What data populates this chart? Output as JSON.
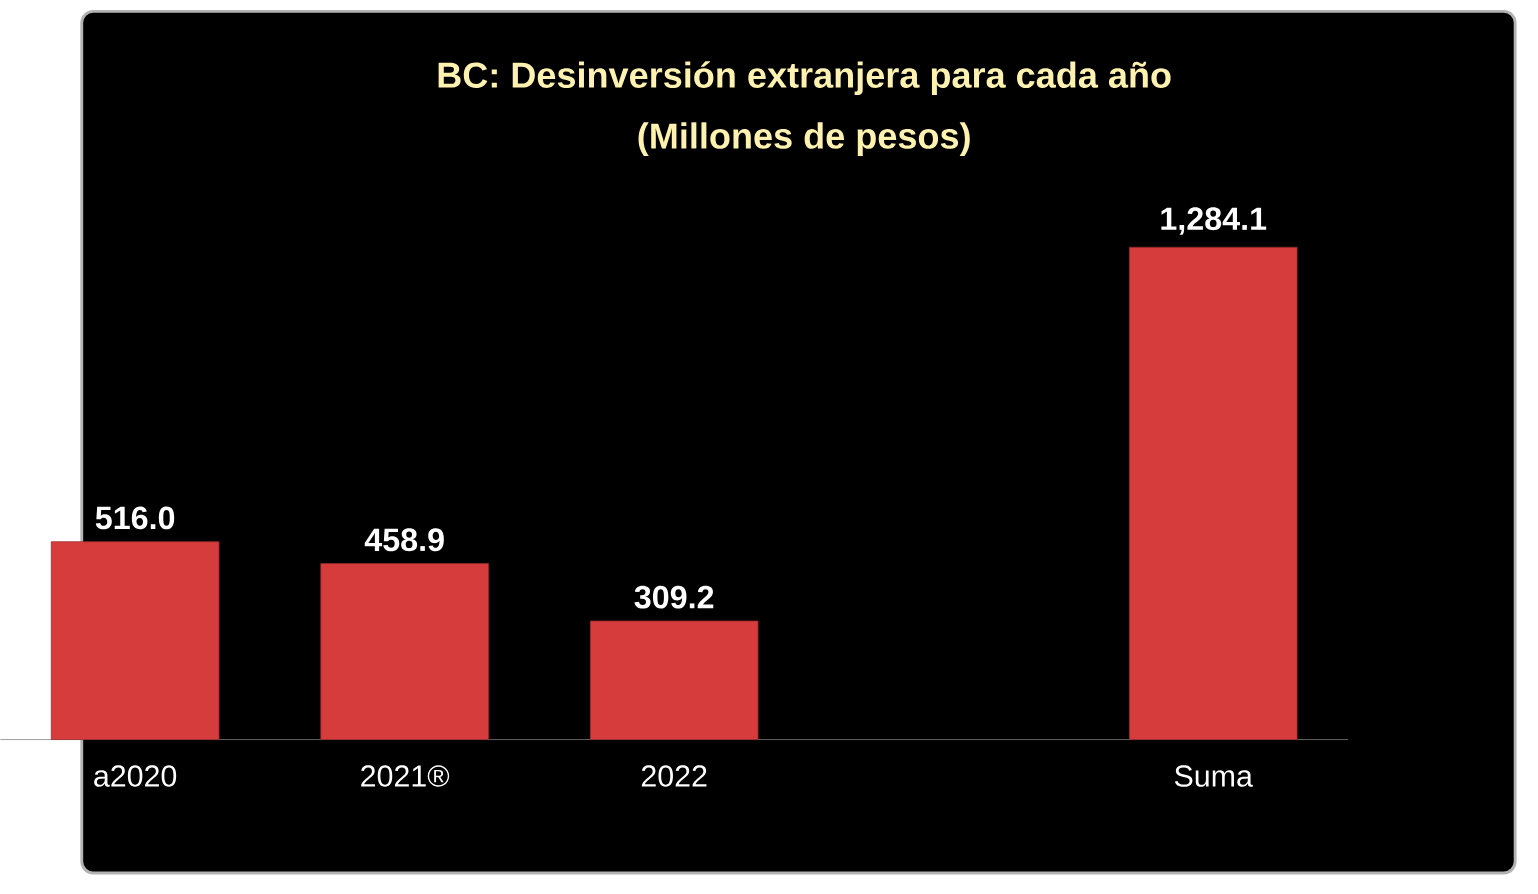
{
  "chart_data": {
    "type": "bar",
    "title": "BC: Desinversión extranjera para cada año",
    "subtitle": "(Millones de pesos)",
    "categories": [
      "a2020",
      "2021®",
      "2022",
      null,
      "Suma"
    ],
    "values": [
      516.0,
      458.9,
      309.2,
      null,
      1284.1
    ],
    "value_labels": [
      "516.0",
      "458.9",
      "309.2",
      null,
      "1,284.1"
    ],
    "color": "#d63c3c"
  }
}
